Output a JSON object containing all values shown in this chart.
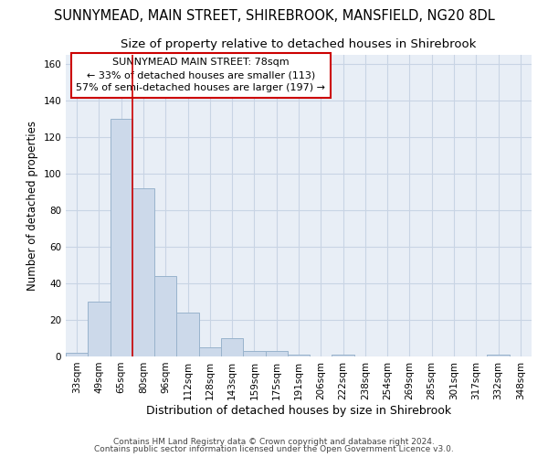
{
  "title1": "SUNNYMEAD, MAIN STREET, SHIREBROOK, MANSFIELD, NG20 8DL",
  "title2": "Size of property relative to detached houses in Shirebrook",
  "xlabel": "Distribution of detached houses by size in Shirebrook",
  "ylabel": "Number of detached properties",
  "footer1": "Contains HM Land Registry data © Crown copyright and database right 2024.",
  "footer2": "Contains public sector information licensed under the Open Government Licence v3.0.",
  "categories": [
    "33sqm",
    "49sqm",
    "65sqm",
    "80sqm",
    "96sqm",
    "112sqm",
    "128sqm",
    "143sqm",
    "159sqm",
    "175sqm",
    "191sqm",
    "206sqm",
    "222sqm",
    "238sqm",
    "254sqm",
    "269sqm",
    "285sqm",
    "301sqm",
    "317sqm",
    "332sqm",
    "348sqm"
  ],
  "values": [
    2,
    30,
    130,
    92,
    44,
    24,
    5,
    10,
    3,
    3,
    1,
    0,
    1,
    0,
    0,
    0,
    0,
    0,
    0,
    1,
    0
  ],
  "bar_color": "#ccd9ea",
  "bar_edge_color": "#99b3cc",
  "red_line_x": 2.5,
  "annotation_text": "SUNNYMEAD MAIN STREET: 78sqm\n← 33% of detached houses are smaller (113)\n57% of semi-detached houses are larger (197) →",
  "annotation_box_color": "#ffffff",
  "annotation_box_edge": "#cc0000",
  "red_line_color": "#cc0000",
  "ylim": [
    0,
    165
  ],
  "yticks": [
    0,
    20,
    40,
    60,
    80,
    100,
    120,
    140,
    160
  ],
  "grid_color": "#c8d4e4",
  "bg_color": "#e8eef6",
  "title1_fontsize": 10.5,
  "title2_fontsize": 9.5,
  "xlabel_fontsize": 9,
  "ylabel_fontsize": 8.5,
  "tick_fontsize": 7.5,
  "footer_fontsize": 6.5,
  "annot_fontsize": 8
}
